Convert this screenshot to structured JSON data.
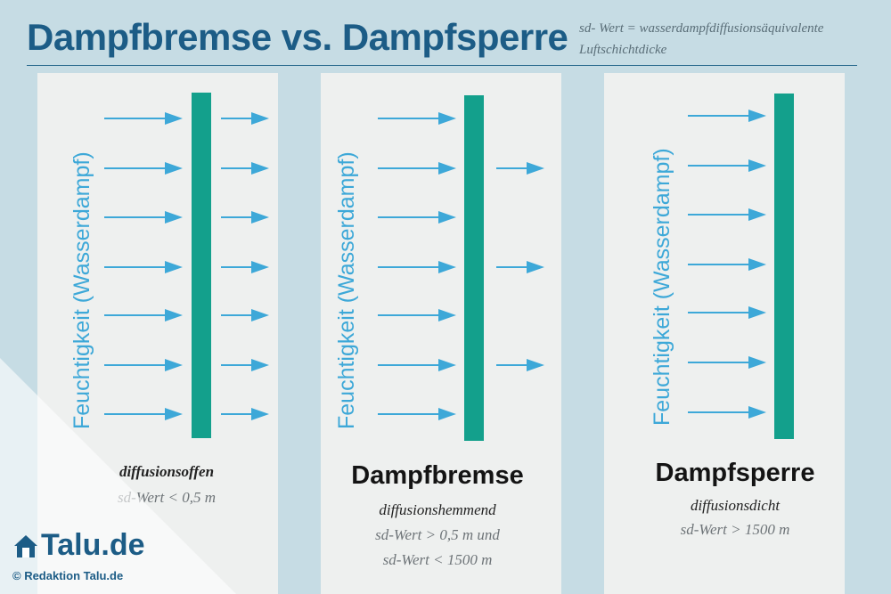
{
  "title": "Dampfbremse vs. Dampfsperre",
  "sd_definition": {
    "line1": "sd- Wert = wasserdampfdiffusionsäquivalente",
    "line2": "Luftschichtdicke"
  },
  "colors": {
    "title": "#1c5c86",
    "arrow": "#3da8d8",
    "barrier": "#13a08c",
    "panel": "#eef0ef",
    "background": "#c6dce4"
  },
  "panels": [
    {
      "axis_label": "Feuchtigkeit (Wasserdampf)",
      "incoming_arrows": 7,
      "passing_arrows": 7,
      "caption_bold": "diffusionsoffen",
      "caption_note": "sd-Wert < 0,5 m"
    },
    {
      "axis_label": "Feuchtigkeit (Wasserdampf)",
      "incoming_arrows": 7,
      "passing_arrows": 3,
      "caption_title": "Dampfbremse",
      "caption_bold": "diffusionshemmend",
      "caption_note_1": "sd-Wert > 0,5 m und",
      "caption_note_2": "sd-Wert < 1500 m"
    },
    {
      "axis_label": "Feuchtigkeit (Wasserdampf)",
      "incoming_arrows": 7,
      "passing_arrows": 0,
      "caption_title": "Dampfsperre",
      "caption_bold": "diffusionsdicht",
      "caption_note": "sd-Wert > 1500 m"
    }
  ],
  "logo": {
    "text": "Talu.de",
    "credit": "© Redaktion Talu.de"
  }
}
